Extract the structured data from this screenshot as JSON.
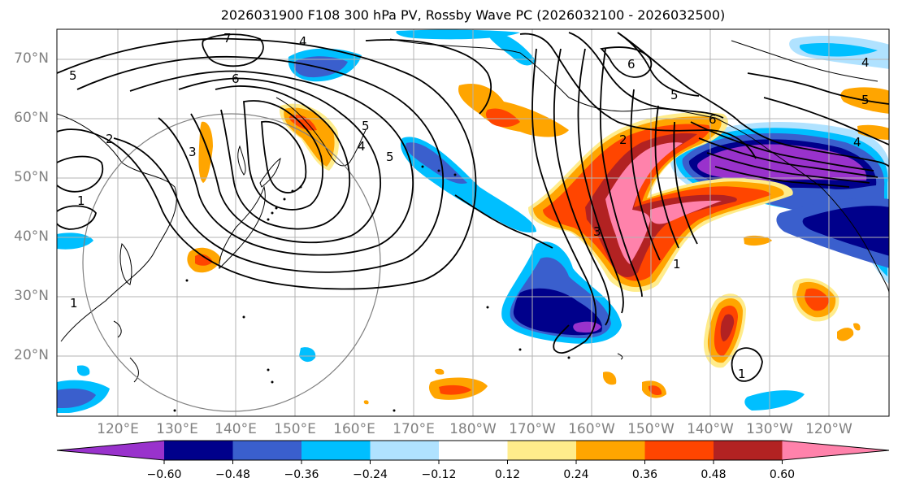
{
  "title": "2026031900 F108 300 hPa PV, Rossby Wave PC (2026032100 - 2026032500)",
  "map": {
    "lat_labels": [
      "70°N",
      "60°N",
      "50°N",
      "40°N",
      "30°N",
      "20°N"
    ],
    "lon_labels": [
      "120°E",
      "130°E",
      "140°E",
      "150°E",
      "160°E",
      "170°E",
      "180°W",
      "170°W",
      "160°W",
      "150°W",
      "140°W",
      "130°W",
      "120°W"
    ],
    "contour_labels": [
      "7",
      "4",
      "6",
      "5",
      "5",
      "2",
      "3",
      "1",
      "4",
      "6",
      "2",
      "6",
      "5",
      "5",
      "4",
      "4",
      "3",
      "5",
      "1",
      "1",
      "1"
    ]
  },
  "colorbar": {
    "ticks": [
      "−0.60",
      "−0.48",
      "−0.36",
      "−0.24",
      "−0.12",
      "0.12",
      "0.24",
      "0.36",
      "0.48",
      "0.60"
    ],
    "colors": [
      "#9932cc",
      "#00008b",
      "#3a5fcd",
      "#00bfff",
      "#b0e2ff",
      "#ffffff",
      "#ffec8b",
      "#ffa500",
      "#ff4500",
      "#b22222",
      "#ff82ab"
    ]
  }
}
